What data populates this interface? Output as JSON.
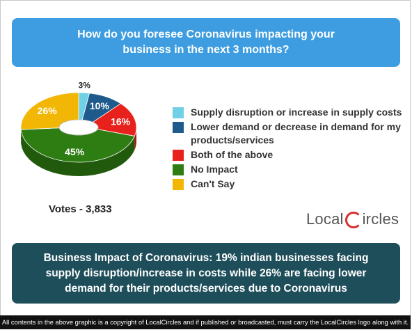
{
  "question": "How do you foresee Coronavirus impacting your business in the next 3 months?",
  "chart_data": {
    "type": "pie",
    "style": "3d-donut",
    "categories": [
      "Supply disruption or increase in supply costs",
      "Lower demand or decrease in demand for my products/services",
      "Both of the above",
      "No Impact",
      "Can't Say"
    ],
    "values": [
      3,
      10,
      16,
      45,
      26
    ],
    "labels": [
      "3%",
      "10%",
      "16%",
      "45%",
      "26%"
    ],
    "colors": [
      "#6fd0e6",
      "#1f5a8c",
      "#e8211c",
      "#2e7d12",
      "#f2b705"
    ],
    "legend": "right"
  },
  "votes": "Votes - 3,833",
  "logo": {
    "before": "Local",
    "after": "ircles"
  },
  "headline": "Business Impact of Coronavirus: 19% indian businesses facing supply disruption/increase in costs while 26% are facing lower demand for their products/services due to Coronavirus",
  "footer": "All contents in the above graphic is a copyright of LocalCircles and if published or broadcasted, must carry the LocalCircles logo along with it."
}
